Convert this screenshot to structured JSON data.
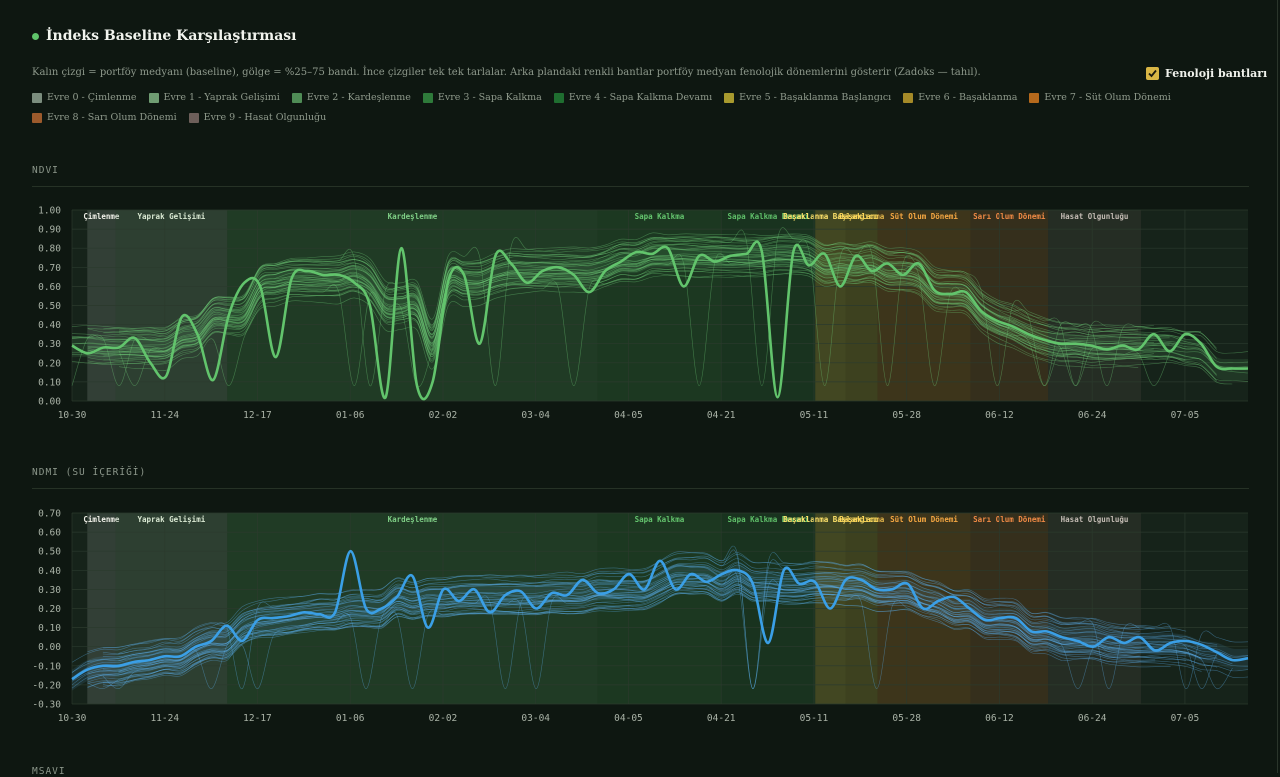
{
  "header": {
    "title": "İndeks Baseline Karşılaştırması",
    "description": "Kalın çizgi = portföy medyanı (baseline), gölge = %25–75 bandı. İnce çizgiler tek tek tarlalar. Arka plandaki renkli bantlar portföy medyan fenolojik dönemlerini gösterir (Zadoks — tahıl)."
  },
  "toggle": {
    "label": "Fenoloji bantları",
    "checked": true
  },
  "legend": [
    {
      "label": "Evre 0 - Çimlenme",
      "color": "#7b8d7e"
    },
    {
      "label": "Evre 1 - Yaprak Gelişimi",
      "color": "#6f9c72"
    },
    {
      "label": "Evre 2 - Kardeşlenme",
      "color": "#4f8c56"
    },
    {
      "label": "Evre 3 - Sapa Kalkma",
      "color": "#2e7a3a"
    },
    {
      "label": "Evre 4 - Sapa Kalkma Devamı",
      "color": "#1f6e30"
    },
    {
      "label": "Evre 5 - Başaklanma Başlangıcı",
      "color": "#a89a2e"
    },
    {
      "label": "Evre 6 - Başaklanma",
      "color": "#a58a28"
    },
    {
      "label": "Evre 7 - Süt Olum Dönemi",
      "color": "#b5691c"
    },
    {
      "label": "Evre 8 - Sarı Olum Dönemi",
      "color": "#9c5a2c"
    },
    {
      "label": "Evre 9 - Hasat Olgunluğu",
      "color": "#6d5f5a"
    }
  ],
  "phenology_bands": [
    {
      "label": "Çimlenme",
      "start": 0.013,
      "end": 0.037,
      "color": "#7c8a80",
      "text_color": "#f2f2ea"
    },
    {
      "label": "Yaprak Gelişimi",
      "start": 0.037,
      "end": 0.132,
      "color": "#6c8870",
      "text_color": "#d9e8d2"
    },
    {
      "label": "Kardeşlenme",
      "start": 0.132,
      "end": 0.447,
      "color": "#3d7a45",
      "text_color": "#7fcf86"
    },
    {
      "label": "Sapa Kalkma",
      "start": 0.447,
      "end": 0.552,
      "color": "#2f6e36",
      "text_color": "#64c56e"
    },
    {
      "label": "Sapa Kalkma Devamı",
      "start": 0.552,
      "end": 0.632,
      "color": "#245f2d",
      "text_color": "#5fbf69"
    },
    {
      "label": "Başaklanma Başlangıcı",
      "start": 0.632,
      "end": 0.658,
      "color": "#b7a43a",
      "text_color": "#ffe36b"
    },
    {
      "label": "Başaklanma",
      "start": 0.658,
      "end": 0.685,
      "color": "#a58f30",
      "text_color": "#ffd85a"
    },
    {
      "label": "Süt Olum Dönemi",
      "start": 0.685,
      "end": 0.764,
      "color": "#a6651f",
      "text_color": "#f5a742"
    },
    {
      "label": "Sarı Olum Dönemi",
      "start": 0.764,
      "end": 0.83,
      "color": "#8a4f24",
      "text_color": "#f08a45"
    },
    {
      "label": "Hasat Olgunluğu",
      "start": 0.83,
      "end": 0.909,
      "color": "#4e4741",
      "text_color": "#c4bcb4"
    }
  ],
  "x_ticks": [
    "10-30",
    "11-24",
    "12-17",
    "01-06",
    "02-02",
    "03-04",
    "04-05",
    "04-21",
    "05-11",
    "05-28",
    "06-12",
    "06-24",
    "07-05"
  ],
  "ndvi": {
    "section_title": "NDVI",
    "chart_data": {
      "type": "line",
      "title": "NDVI",
      "xlabel": "",
      "ylabel": "",
      "ylim": [
        0,
        1
      ],
      "y_ticks": [
        "1.00",
        "0.90",
        "0.80",
        "0.70",
        "0.60",
        "0.50",
        "0.40",
        "0.30",
        "0.20",
        "0.10",
        "0.00"
      ],
      "x_tick_labels": [
        "10-30",
        "11-24",
        "12-17",
        "01-06",
        "02-02",
        "03-04",
        "04-05",
        "04-21",
        "05-11",
        "05-28",
        "06-12",
        "06-24",
        "07-05"
      ],
      "median_color": "#62c46c",
      "thin_color": "#6fcd78",
      "median": [
        0.29,
        0.25,
        0.28,
        0.28,
        0.33,
        0.2,
        0.13,
        0.44,
        0.35,
        0.11,
        0.45,
        0.62,
        0.6,
        0.23,
        0.64,
        0.68,
        0.66,
        0.66,
        0.62,
        0.5,
        0.02,
        0.8,
        0.08,
        0.1,
        0.63,
        0.66,
        0.3,
        0.76,
        0.72,
        0.62,
        0.68,
        0.7,
        0.66,
        0.57,
        0.68,
        0.73,
        0.78,
        0.77,
        0.8,
        0.6,
        0.76,
        0.73,
        0.76,
        0.77,
        0.78,
        0.02,
        0.78,
        0.71,
        0.77,
        0.6,
        0.76,
        0.68,
        0.72,
        0.66,
        0.72,
        0.58,
        0.56,
        0.57,
        0.47,
        0.42,
        0.39,
        0.35,
        0.32,
        0.3,
        0.3,
        0.29,
        0.27,
        0.29,
        0.27,
        0.35,
        0.26,
        0.35,
        0.3,
        0.18,
        0.17,
        0.17
      ],
      "band_low_offset": 0.05,
      "band_high_offset": 0.04
    }
  },
  "ndmi": {
    "section_title": "NDMI (SU İÇERİĞİ)",
    "chart_data": {
      "type": "line",
      "title": "NDMI (SU İÇERİĞİ)",
      "xlabel": "",
      "ylabel": "",
      "ylim": [
        -0.3,
        0.7
      ],
      "y_ticks": [
        "0.70",
        "0.60",
        "0.50",
        "0.40",
        "0.30",
        "0.20",
        "0.10",
        "0.00",
        "-0.10",
        "-0.20",
        "-0.30"
      ],
      "x_tick_labels": [
        "10-30",
        "11-24",
        "12-17",
        "01-06",
        "02-02",
        "03-04",
        "04-05",
        "04-21",
        "05-11",
        "05-28",
        "06-12",
        "06-24",
        "07-05"
      ],
      "median_color": "#3a9fe6",
      "thin_color": "#5aaee8",
      "median": [
        -0.17,
        -0.12,
        -0.1,
        -0.1,
        -0.08,
        -0.07,
        -0.05,
        -0.05,
        0.0,
        0.03,
        0.11,
        0.03,
        0.14,
        0.15,
        0.16,
        0.18,
        0.17,
        0.18,
        0.5,
        0.2,
        0.2,
        0.26,
        0.37,
        0.1,
        0.3,
        0.24,
        0.3,
        0.18,
        0.27,
        0.29,
        0.2,
        0.28,
        0.27,
        0.35,
        0.28,
        0.3,
        0.38,
        0.3,
        0.45,
        0.3,
        0.38,
        0.34,
        0.38,
        0.4,
        0.33,
        0.02,
        0.4,
        0.33,
        0.34,
        0.2,
        0.35,
        0.35,
        0.3,
        0.3,
        0.33,
        0.2,
        0.24,
        0.26,
        0.2,
        0.14,
        0.15,
        0.15,
        0.08,
        0.08,
        0.05,
        0.03,
        0.0,
        0.05,
        0.02,
        0.05,
        -0.02,
        0.02,
        0.03,
        0.01,
        -0.03,
        -0.07,
        -0.06
      ]
    }
  },
  "msavi": {
    "section_title": "MSAVI"
  }
}
